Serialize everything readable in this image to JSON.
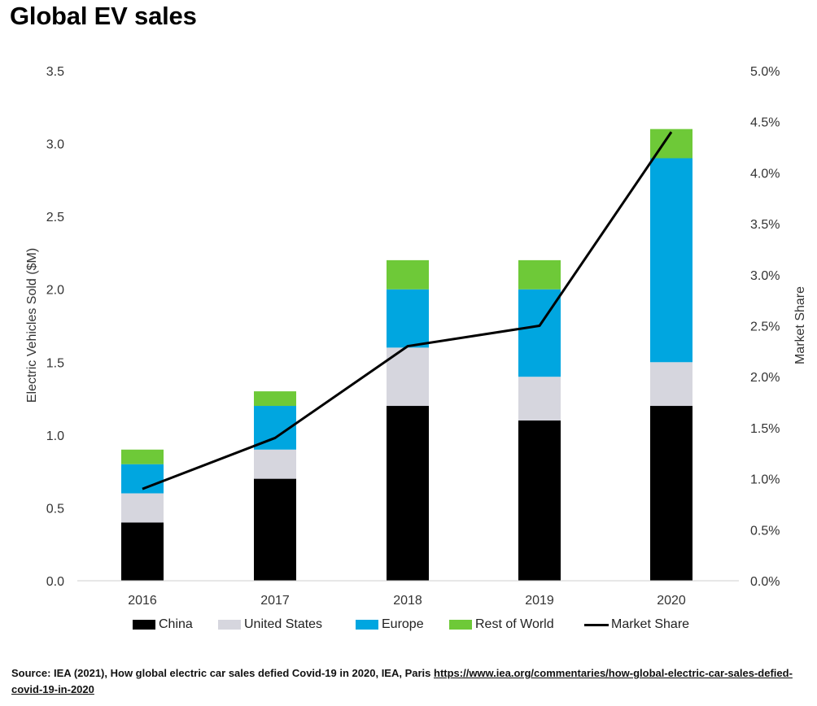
{
  "title": "Global EV sales",
  "source": {
    "text": "Source: IEA (2021), How global electric car sales defied Covid-19 in 2020, IEA, Paris ",
    "link": "https://www.iea.org/commentaries/how-global-electric-car-sales-defied-covid-19-in-2020"
  },
  "colors": {
    "China": "#000000",
    "United States": "#d6d6de",
    "Europe": "#00a6e0",
    "Rest of World": "#6ec938",
    "Market Share": "#000000"
  },
  "chart_data": {
    "type": "bar",
    "stacked": true,
    "categories": [
      "2016",
      "2017",
      "2018",
      "2019",
      "2020"
    ],
    "series": [
      {
        "name": "China",
        "values": [
          0.4,
          0.7,
          1.2,
          1.1,
          1.2
        ]
      },
      {
        "name": "United States",
        "values": [
          0.2,
          0.2,
          0.4,
          0.3,
          0.3
        ]
      },
      {
        "name": "Europe",
        "values": [
          0.2,
          0.3,
          0.4,
          0.6,
          1.4
        ]
      },
      {
        "name": "Rest of World",
        "values": [
          0.1,
          0.1,
          0.2,
          0.2,
          0.2
        ]
      }
    ],
    "line_series": {
      "name": "Market Share",
      "axis": "right",
      "values": [
        0.9,
        1.4,
        2.3,
        2.5,
        4.4
      ]
    },
    "ylabel": "Electric Vehicles Sold ($M)",
    "ylabel_right": "Market Share",
    "ylim": [
      0,
      3.5
    ],
    "ylim_right": [
      0,
      5.0
    ],
    "yticks": [
      "0.0",
      "0.5",
      "1.0",
      "1.5",
      "2.0",
      "2.5",
      "3.0",
      "3.5"
    ],
    "yticks_right": [
      "0.0%",
      "0.5%",
      "1.0%",
      "1.5%",
      "2.0%",
      "2.5%",
      "3.0%",
      "3.5%",
      "4.0%",
      "4.5%",
      "5.0%"
    ],
    "grid": false,
    "legend_position": "bottom"
  }
}
